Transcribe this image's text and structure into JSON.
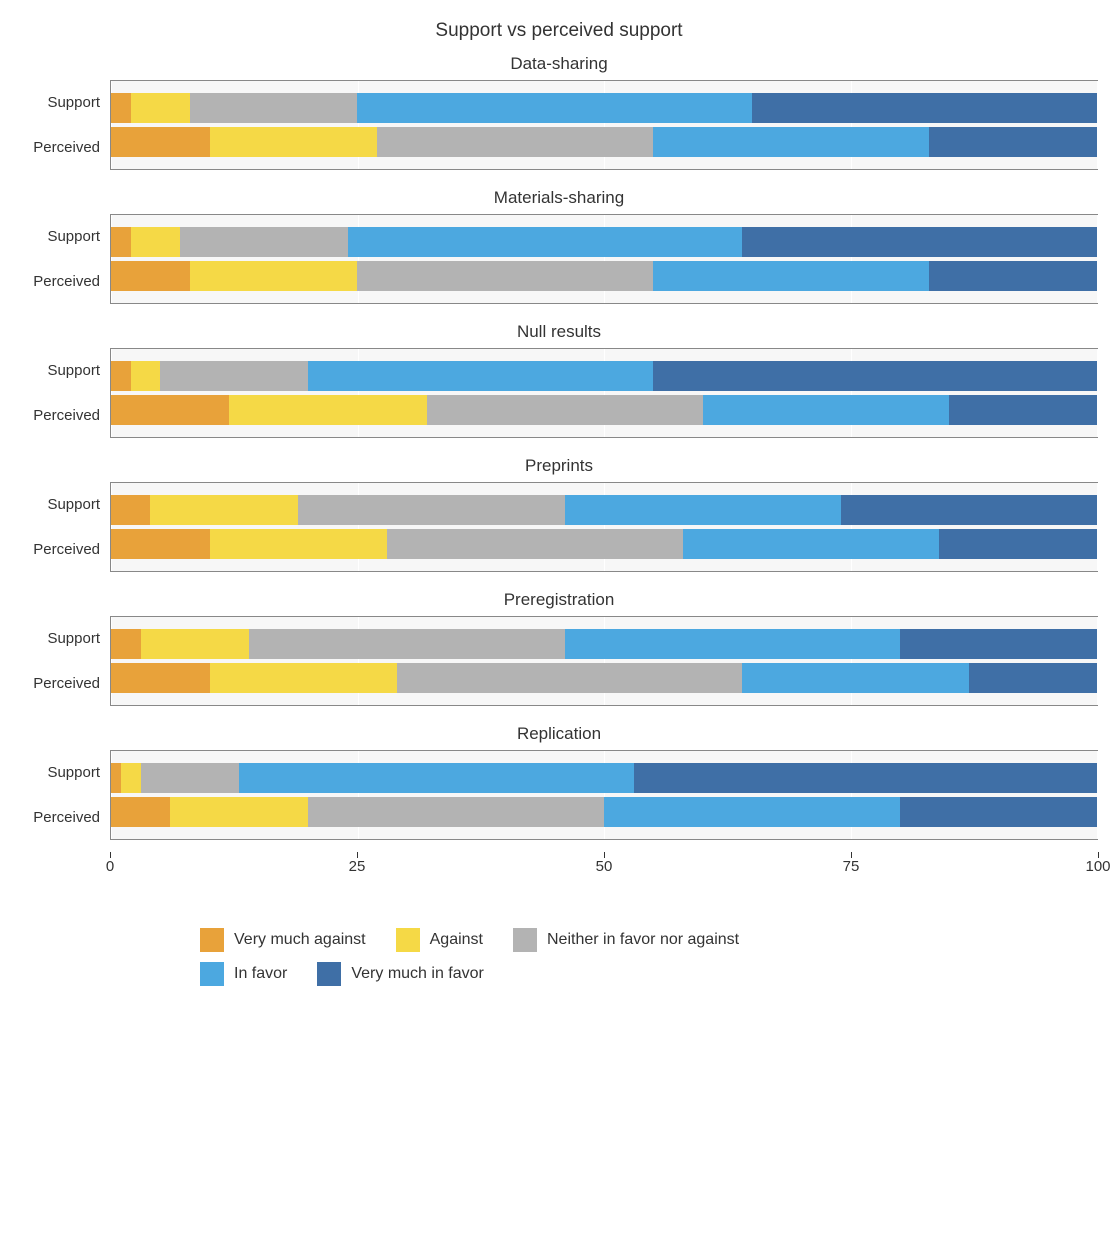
{
  "type": "stacked-bar-facets",
  "title": "Support vs perceived support",
  "title_fontsize": 19,
  "panel_title_fontsize": 17,
  "label_fontsize": 15,
  "background_color": "#ffffff",
  "panel_bg_color": "#f7f7f7",
  "panel_border_color": "#888888",
  "grid_color": "#ffffff",
  "xlim": [
    0,
    100
  ],
  "xtick_step": 25,
  "xticks": [
    0,
    25,
    50,
    75,
    100
  ],
  "row_labels": [
    "Support",
    "Perceived"
  ],
  "categories": [
    {
      "key": "very_against",
      "label": "Very much against",
      "color": "#e8a23a"
    },
    {
      "key": "against",
      "label": "Against",
      "color": "#f5d946"
    },
    {
      "key": "neither",
      "label": "Neither in favor nor against",
      "color": "#b3b3b3"
    },
    {
      "key": "in_favor",
      "label": "In favor",
      "color": "#4ca8e0"
    },
    {
      "key": "very_favor",
      "label": "Very much in favor",
      "color": "#3f6fa6"
    }
  ],
  "panels": [
    {
      "title": "Data-sharing",
      "rows": [
        {
          "label": "Support",
          "values": [
            2,
            6,
            17,
            40,
            35
          ]
        },
        {
          "label": "Perceived",
          "values": [
            10,
            17,
            28,
            28,
            17
          ]
        }
      ]
    },
    {
      "title": "Materials-sharing",
      "rows": [
        {
          "label": "Support",
          "values": [
            2,
            5,
            17,
            40,
            36
          ]
        },
        {
          "label": "Perceived",
          "values": [
            8,
            17,
            30,
            28,
            17
          ]
        }
      ]
    },
    {
      "title": "Null results",
      "rows": [
        {
          "label": "Support",
          "values": [
            2,
            3,
            15,
            35,
            45
          ]
        },
        {
          "label": "Perceived",
          "values": [
            12,
            20,
            28,
            25,
            15
          ]
        }
      ]
    },
    {
      "title": "Preprints",
      "rows": [
        {
          "label": "Support",
          "values": [
            4,
            15,
            27,
            28,
            26
          ]
        },
        {
          "label": "Perceived",
          "values": [
            10,
            18,
            30,
            26,
            16
          ]
        }
      ]
    },
    {
      "title": "Preregistration",
      "rows": [
        {
          "label": "Support",
          "values": [
            3,
            11,
            32,
            34,
            20
          ]
        },
        {
          "label": "Perceived",
          "values": [
            10,
            19,
            35,
            23,
            13
          ]
        }
      ]
    },
    {
      "title": "Replication",
      "rows": [
        {
          "label": "Support",
          "values": [
            1,
            2,
            10,
            40,
            47
          ]
        },
        {
          "label": "Perceived",
          "values": [
            6,
            14,
            30,
            30,
            20
          ]
        }
      ]
    }
  ],
  "legend_layout": [
    [
      "very_against",
      "against",
      "neither"
    ],
    [
      "in_favor",
      "very_favor"
    ]
  ]
}
